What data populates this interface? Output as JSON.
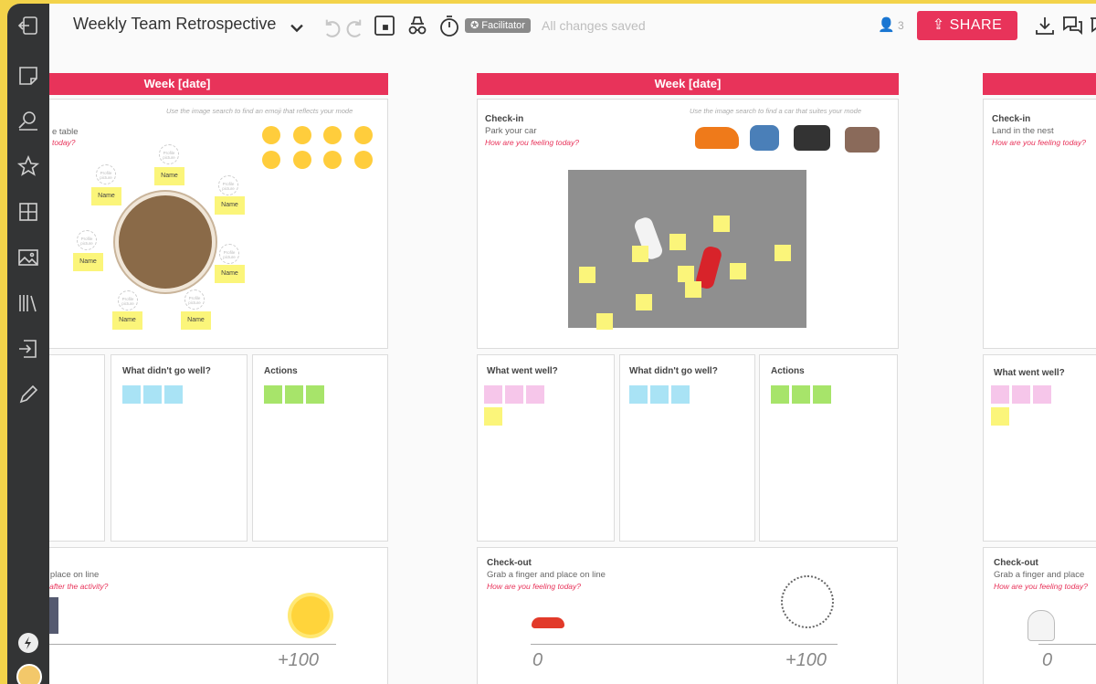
{
  "topbar": {
    "title": "Weekly Team Retrospective",
    "facilitator_badge": "Facilitator",
    "save_status": "All changes saved",
    "user_count": "3",
    "share_label": "SHARE"
  },
  "sidebar": {
    "icons": [
      "exit-icon",
      "sticky-note-icon",
      "search-image-icon",
      "star-icon",
      "grid-icon",
      "image-icon",
      "library-icon",
      "import-icon",
      "pen-icon",
      "lightning-icon",
      "avatar"
    ]
  },
  "boards": [
    {
      "week": "Week [date]",
      "checkin_title": "",
      "checkin_sub": "e table",
      "checkin_q": "today?",
      "checkin_hint": "Use the image search to find an emoji that reflects your mode",
      "name_label": "Name",
      "profile_label": "Profile picture",
      "col2_title": "What didn't go well?",
      "col3_title": "Actions",
      "checkout_sub": "d place on line",
      "checkout_q": "g after the activity?",
      "axis_max": "+100"
    },
    {
      "week": "Week [date]",
      "checkin_title": "Check-in",
      "checkin_sub": "Park your car",
      "checkin_q": "How are you feeling today?",
      "checkin_hint": "Use the image search to find a car that suites your mode",
      "col1_title": "What went well?",
      "col2_title": "What didn't go well?",
      "col3_title": "Actions",
      "checkout_title": "Check-out",
      "checkout_sub": "Grab a finger and place on line",
      "checkout_q": "How are you feeling today?",
      "axis_min": "0",
      "axis_max": "+100"
    },
    {
      "week": "",
      "checkin_title": "Check-in",
      "checkin_sub": "Land in the nest",
      "checkin_q": "How are you feeling today?",
      "col1_title": "What went well?",
      "checkout_title": "Check-out",
      "checkout_sub": "Grab a finger and place",
      "checkout_q": "How are you feeling today?",
      "axis_min": "0"
    }
  ],
  "colors": {
    "accent": "#e8335a",
    "sidebar": "#333435",
    "frame": "#f3d34a",
    "sticky_yellow": "#fbf57a",
    "sticky_blue": "#a9e3f5",
    "sticky_pink": "#f6c6ea",
    "sticky_green": "#a7e46a"
  }
}
